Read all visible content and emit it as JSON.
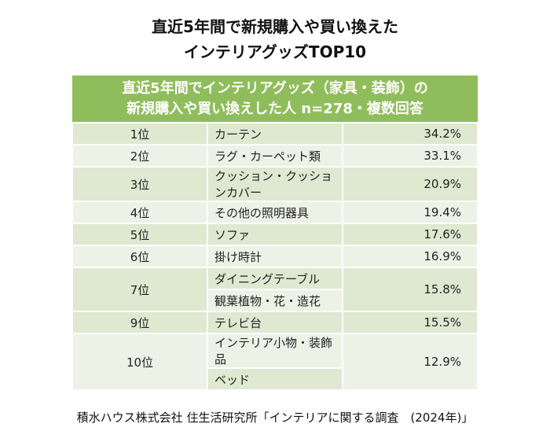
{
  "title": [
    "直近5年間で新規購入や買い換えた",
    "インテリアグッズTOP10"
  ],
  "chart_data": {
    "type": "table",
    "header": [
      "直近5年間でインテリアグッズ（家具・装飾）の",
      "新規購入や買い換えした人 n=278・複数回答"
    ],
    "rows": [
      {
        "rank": "1位",
        "items": [
          "カーテン"
        ],
        "value": "34.2%"
      },
      {
        "rank": "2位",
        "items": [
          "ラグ・カーペット類"
        ],
        "value": "33.1%"
      },
      {
        "rank": "3位",
        "items": [
          "クッション・クッションカバー"
        ],
        "value": "20.9%"
      },
      {
        "rank": "4位",
        "items": [
          "その他の照明器具"
        ],
        "value": "19.4%"
      },
      {
        "rank": "5位",
        "items": [
          "ソファ"
        ],
        "value": "17.6%"
      },
      {
        "rank": "6位",
        "items": [
          "掛け時計"
        ],
        "value": "16.9%"
      },
      {
        "rank": "7位",
        "items": [
          "ダイニングテーブル",
          "観葉植物・花・造花"
        ],
        "value": "15.8%"
      },
      {
        "rank": "9位",
        "items": [
          "テレビ台"
        ],
        "value": "15.5%"
      },
      {
        "rank": "10位",
        "items": [
          "インテリア小物・装飾品",
          "ベッド"
        ],
        "value": "12.9%"
      }
    ],
    "colors": {
      "header": "#8fbd5b",
      "row_dark": "#dfe8d1",
      "row_light": "#edf2e6"
    }
  },
  "footer": "積水ハウス株式会社 住生活研究所「インテリアに関する調査　(2024年)」"
}
